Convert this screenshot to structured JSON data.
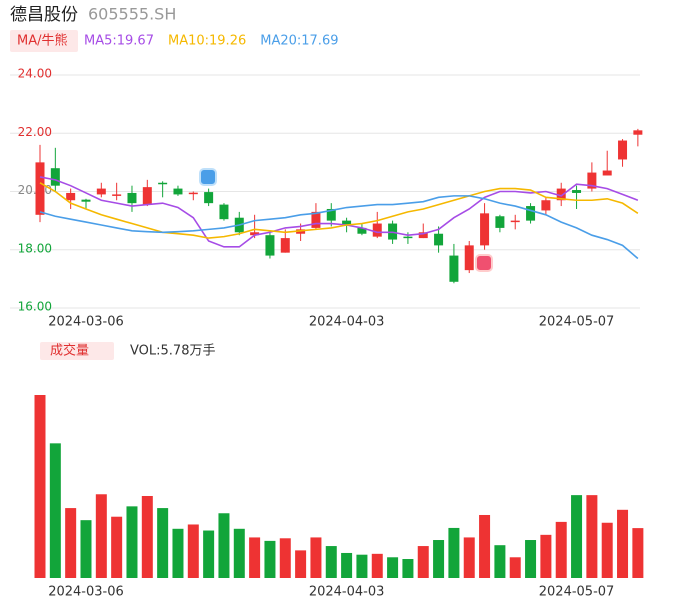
{
  "chart_data": {
    "type": "candlestick",
    "title": "德昌股份",
    "subtitle": "605555.SH",
    "legend_title": "MA/牛熊",
    "categories": [
      null,
      null,
      null,
      "2024-03-06",
      null,
      null,
      null,
      null,
      null,
      null,
      null,
      null,
      null,
      null,
      null,
      null,
      null,
      null,
      null,
      null,
      "2024-04-03",
      null,
      null,
      null,
      null,
      null,
      null,
      null,
      null,
      null,
      null,
      null,
      null,
      null,
      null,
      "2024-05-07",
      null,
      null,
      null,
      null
    ],
    "open": [
      19.2,
      20.8,
      19.7,
      19.72,
      19.9,
      19.85,
      19.95,
      19.55,
      20.3,
      20.1,
      19.92,
      19.98,
      19.55,
      19.1,
      18.5,
      18.5,
      17.9,
      18.55,
      18.75,
      19.4,
      19.0,
      18.75,
      18.45,
      18.9,
      18.45,
      18.4,
      18.55,
      17.8,
      17.3,
      18.15,
      19.15,
      18.95,
      19.5,
      19.35,
      19.7,
      20.05,
      20.1,
      20.55,
      21.1,
      21.95
    ],
    "high": [
      21.6,
      21.5,
      20.1,
      19.75,
      20.3,
      20.3,
      20.2,
      20.4,
      20.35,
      20.2,
      20.0,
      20.1,
      19.6,
      19.3,
      19.2,
      18.6,
      18.7,
      18.9,
      19.6,
      19.6,
      19.1,
      18.9,
      19.3,
      19.0,
      18.6,
      18.9,
      18.8,
      18.2,
      18.3,
      19.6,
      19.2,
      19.2,
      19.6,
      19.8,
      20.3,
      20.2,
      21.0,
      21.4,
      21.8,
      22.15
    ],
    "low": [
      18.95,
      20.0,
      19.4,
      19.4,
      19.8,
      19.7,
      19.3,
      19.5,
      19.8,
      19.85,
      19.7,
      19.5,
      19.0,
      18.5,
      18.4,
      17.7,
      17.9,
      18.3,
      18.7,
      18.8,
      18.6,
      18.5,
      18.4,
      18.2,
      18.2,
      18.4,
      17.9,
      16.85,
      17.2,
      18.0,
      18.6,
      18.7,
      18.9,
      19.2,
      19.5,
      19.4,
      20.0,
      20.55,
      20.85,
      21.55
    ],
    "close": [
      21.0,
      20.2,
      19.95,
      19.65,
      20.1,
      19.9,
      19.6,
      20.15,
      20.28,
      19.9,
      19.96,
      19.6,
      19.05,
      18.6,
      18.6,
      17.8,
      18.4,
      18.7,
      19.3,
      19.0,
      18.85,
      18.55,
      18.9,
      18.35,
      18.4,
      18.6,
      18.15,
      16.9,
      18.15,
      19.25,
      18.75,
      19.0,
      19.0,
      19.7,
      20.1,
      19.95,
      20.65,
      20.72,
      21.75,
      22.1
    ],
    "up_color": "#ee3333",
    "down_color": "#12a53a",
    "series": [
      {
        "name": "MA5:19.67",
        "color": "#a64ce6",
        "values": [
          20.5,
          20.4,
          20.2,
          19.95,
          19.7,
          19.6,
          19.5,
          19.55,
          19.6,
          19.45,
          19.1,
          18.3,
          18.1,
          18.1,
          18.5,
          18.6,
          18.75,
          18.8,
          18.9,
          18.9,
          18.85,
          18.75,
          18.6,
          18.6,
          18.5,
          18.55,
          18.7,
          19.1,
          19.4,
          19.8,
          20.0,
          20.0,
          19.95,
          20.0,
          19.85,
          20.25,
          20.2,
          20.1,
          19.9,
          19.7
        ]
      },
      {
        "name": "MA10:19.26",
        "color": "#f5b800",
        "values": [
          20.3,
          20.0,
          19.6,
          19.4,
          19.2,
          19.05,
          18.9,
          18.75,
          18.6,
          18.55,
          18.5,
          18.4,
          18.45,
          18.55,
          18.7,
          18.65,
          18.6,
          18.65,
          18.7,
          18.75,
          18.85,
          18.9,
          19.0,
          19.15,
          19.3,
          19.4,
          19.55,
          19.7,
          19.85,
          20.0,
          20.1,
          20.1,
          20.05,
          19.8,
          19.75,
          19.7,
          19.7,
          19.75,
          19.6,
          19.25
        ]
      },
      {
        "name": "MA20:17.69",
        "color": "#4a9ee8",
        "values": [
          19.3,
          19.15,
          19.05,
          18.95,
          18.85,
          18.75,
          18.65,
          18.62,
          18.6,
          18.62,
          18.65,
          18.7,
          18.75,
          18.85,
          19.0,
          19.05,
          19.1,
          19.2,
          19.25,
          19.35,
          19.45,
          19.5,
          19.55,
          19.55,
          19.6,
          19.65,
          19.8,
          19.85,
          19.85,
          19.75,
          19.6,
          19.5,
          19.35,
          19.2,
          18.95,
          18.75,
          18.5,
          18.35,
          18.15,
          17.7
        ]
      }
    ],
    "ylim": [
      16,
      24
    ],
    "yticks": [
      {
        "value": 16,
        "label": "16.00"
      },
      {
        "value": 18,
        "label": "18.00"
      },
      {
        "value": 20,
        "label": "20.00"
      },
      {
        "value": 22,
        "label": "22.00"
      },
      {
        "value": 24,
        "label": "24.00"
      }
    ],
    "grid": true,
    "volume": {
      "title": "成交量",
      "label": "VOL:5.78万手",
      "values": [
        21.2,
        15.6,
        8.1,
        6.7,
        9.7,
        7.1,
        8.3,
        9.5,
        8.1,
        5.7,
        6.2,
        5.5,
        7.5,
        5.7,
        4.7,
        4.3,
        4.6,
        3.2,
        4.7,
        3.7,
        2.9,
        2.7,
        2.8,
        2.4,
        2.2,
        3.7,
        4.4,
        5.8,
        4.7,
        7.3,
        3.8,
        2.4,
        4.4,
        5.0,
        6.5,
        9.6,
        9.6,
        6.4,
        7.9,
        5.78
      ]
    }
  }
}
